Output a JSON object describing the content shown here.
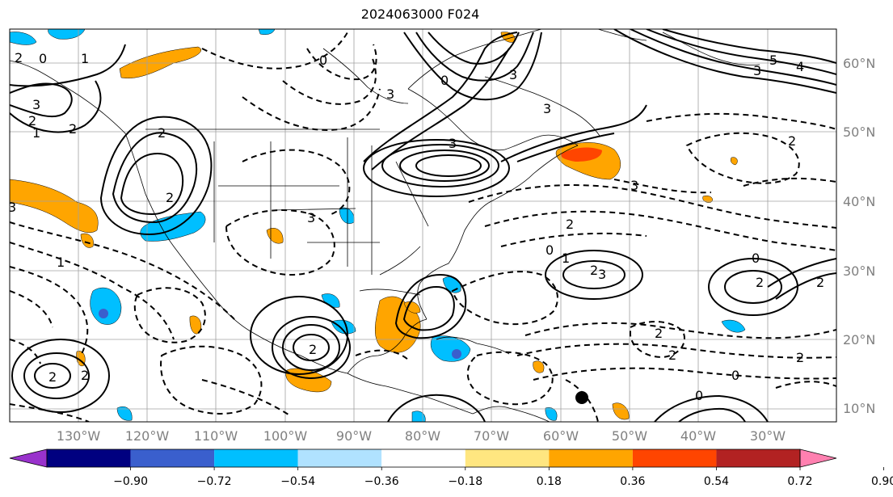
{
  "title": "2024063000 F024",
  "lat_labels": [
    "60°N",
    "50°N",
    "40°N",
    "30°N",
    "20°N",
    "10°N"
  ],
  "lon_labels": [
    "130°W",
    "120°W",
    "110°W",
    "100°W",
    "90°W",
    "80°W",
    "70°W",
    "60°W",
    "50°W",
    "40°W",
    "30°W"
  ],
  "colorbar": {
    "ticks": [
      "−0.90",
      "−0.72",
      "−0.54",
      "−0.36",
      "−0.18",
      "0.18",
      "0.36",
      "0.54",
      "0.72",
      "0.90"
    ],
    "colors": [
      "#9932cc",
      "#000080",
      "#3a5fcd",
      "#00bfff",
      "#b0e2ff",
      "#ffffff",
      "#ffe680",
      "#ffa500",
      "#ff4500",
      "#b22222",
      "#ff80b0"
    ]
  },
  "contour_labels": {
    "positive": [
      "5",
      "4",
      "3",
      "3",
      "3",
      "3",
      "3",
      "3",
      "2",
      "2",
      "2",
      "2",
      "2",
      "2",
      "2",
      "2",
      "2",
      "1",
      "1",
      "1",
      "1"
    ],
    "negative": [
      "0",
      "0",
      "0",
      "0",
      "0",
      "0",
      "0",
      "1",
      "1",
      "2",
      "2",
      "2",
      "2",
      "2",
      "3",
      "3",
      "3",
      "3"
    ]
  }
}
